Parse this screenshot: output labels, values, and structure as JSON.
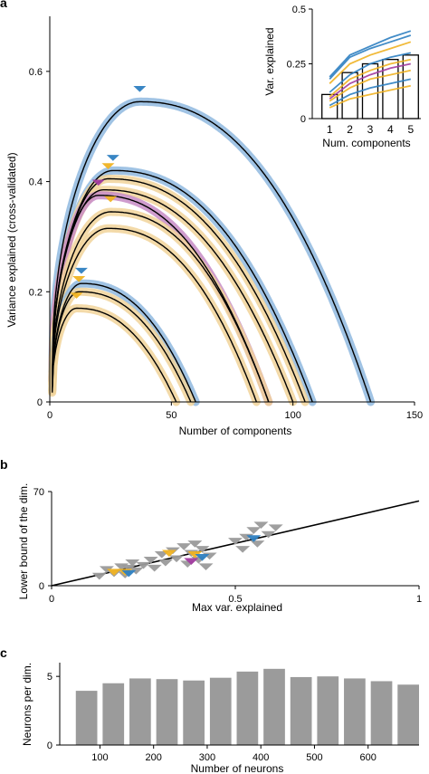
{
  "colors": {
    "blue_light": "#8fb9df",
    "blue_dark": "#2e7fc1",
    "orange_light": "#f1d39a",
    "orange_dark": "#f0b323",
    "purple": "#a23ca0",
    "bar_gray": "#9b9b9b",
    "tri_gray": "#9a9a9a",
    "line": "#000000"
  },
  "chart_data": [
    {
      "id": "a",
      "panel_label": "a",
      "type": "line",
      "xlabel": "Number of components",
      "ylabel": "Variance explained (cross-validated)",
      "xlim": [
        0,
        150
      ],
      "ylim": [
        0,
        0.7
      ],
      "xticks": [
        0,
        50,
        100,
        150
      ],
      "yticks": [
        0,
        0.2,
        0.4,
        0.6
      ],
      "series": [
        {
          "color": "blue",
          "peak_x": 37,
          "peak_y": 0.545,
          "end_x": 132,
          "marker": "blue"
        },
        {
          "color": "blue",
          "peak_x": 26,
          "peak_y": 0.42,
          "end_x": 108,
          "marker": "blue"
        },
        {
          "color": "orange",
          "peak_x": 24,
          "peak_y": 0.405,
          "end_x": 105,
          "marker": "orange"
        },
        {
          "color": "orange",
          "peak_x": 22,
          "peak_y": 0.385,
          "end_x": 100
        },
        {
          "color": "purple",
          "peak_x": 20,
          "peak_y": 0.375,
          "end_x": 90,
          "marker": "purple"
        },
        {
          "color": "orange",
          "peak_x": 25,
          "peak_y": 0.345,
          "end_x": 90,
          "marker": "orange"
        },
        {
          "color": "orange",
          "peak_x": 24,
          "peak_y": 0.315,
          "end_x": 85
        },
        {
          "color": "blue",
          "peak_x": 13,
          "peak_y": 0.215,
          "end_x": 60,
          "marker": "blue"
        },
        {
          "color": "orange",
          "peak_x": 12,
          "peak_y": 0.2,
          "end_x": 58,
          "marker": "orange"
        },
        {
          "color": "orange",
          "peak_x": 11,
          "peak_y": 0.17,
          "end_x": 52,
          "marker": "orange"
        }
      ],
      "inset": {
        "type": "bar",
        "xlabel": "Num. components",
        "ylabel": "Var. explained",
        "categories": [
          "1",
          "2",
          "3",
          "4",
          "5"
        ],
        "values": [
          0.11,
          0.21,
          0.25,
          0.27,
          0.29
        ],
        "ylim": [
          0,
          0.5
        ],
        "yticks": [
          "0",
          "0.25",
          "0.5"
        ],
        "lines": [
          {
            "color": "blue",
            "values": [
              0.19,
              0.29,
              0.33,
              0.37,
              0.4
            ]
          },
          {
            "color": "blue",
            "values": [
              0.18,
              0.28,
              0.32,
              0.35,
              0.38
            ]
          },
          {
            "color": "orange",
            "values": [
              0.16,
              0.25,
              0.29,
              0.32,
              0.35
            ]
          },
          {
            "color": "blue",
            "values": [
              0.12,
              0.2,
              0.25,
              0.28,
              0.3
            ]
          },
          {
            "color": "orange",
            "values": [
              0.1,
              0.18,
              0.22,
              0.25,
              0.27
            ]
          },
          {
            "color": "purple",
            "values": [
              0.09,
              0.16,
              0.2,
              0.23,
              0.25
            ]
          },
          {
            "color": "orange",
            "values": [
              0.08,
              0.14,
              0.18,
              0.2,
              0.22
            ]
          },
          {
            "color": "blue",
            "values": [
              0.06,
              0.11,
              0.14,
              0.16,
              0.18
            ]
          },
          {
            "color": "orange",
            "values": [
              0.05,
              0.09,
              0.11,
              0.13,
              0.15
            ]
          }
        ]
      }
    },
    {
      "id": "b",
      "panel_label": "b",
      "type": "scatter",
      "xlabel": "Max var. explained",
      "ylabel": "Lower bound of the dim.",
      "xlim": [
        0,
        1
      ],
      "ylim": [
        0,
        70
      ],
      "xticks": [
        "0",
        "0.5",
        "1"
      ],
      "yticks": [
        "0",
        "70"
      ],
      "fit_line": {
        "x": [
          0,
          1
        ],
        "y": [
          0,
          63
        ]
      },
      "points": [
        {
          "x": 0.13,
          "y": 7,
          "c": "gray"
        },
        {
          "x": 0.15,
          "y": 12,
          "c": "gray"
        },
        {
          "x": 0.17,
          "y": 9,
          "c": "gray"
        },
        {
          "x": 0.19,
          "y": 14,
          "c": "gray"
        },
        {
          "x": 0.2,
          "y": 8,
          "c": "gray"
        },
        {
          "x": 0.21,
          "y": 13,
          "c": "gray"
        },
        {
          "x": 0.22,
          "y": 17,
          "c": "gray"
        },
        {
          "x": 0.23,
          "y": 11,
          "c": "gray"
        },
        {
          "x": 0.25,
          "y": 15,
          "c": "gray"
        },
        {
          "x": 0.27,
          "y": 19,
          "c": "gray"
        },
        {
          "x": 0.28,
          "y": 13,
          "c": "gray"
        },
        {
          "x": 0.3,
          "y": 23,
          "c": "gray"
        },
        {
          "x": 0.31,
          "y": 17,
          "c": "gray"
        },
        {
          "x": 0.33,
          "y": 26,
          "c": "gray"
        },
        {
          "x": 0.34,
          "y": 20,
          "c": "gray"
        },
        {
          "x": 0.36,
          "y": 29,
          "c": "gray"
        },
        {
          "x": 0.37,
          "y": 16,
          "c": "gray"
        },
        {
          "x": 0.38,
          "y": 24,
          "c": "gray"
        },
        {
          "x": 0.39,
          "y": 31,
          "c": "gray"
        },
        {
          "x": 0.4,
          "y": 19,
          "c": "gray"
        },
        {
          "x": 0.41,
          "y": 27,
          "c": "gray"
        },
        {
          "x": 0.42,
          "y": 14,
          "c": "gray"
        },
        {
          "x": 0.43,
          "y": 22,
          "c": "gray"
        },
        {
          "x": 0.5,
          "y": 33,
          "c": "gray"
        },
        {
          "x": 0.52,
          "y": 27,
          "c": "gray"
        },
        {
          "x": 0.53,
          "y": 36,
          "c": "gray"
        },
        {
          "x": 0.55,
          "y": 41,
          "c": "gray"
        },
        {
          "x": 0.56,
          "y": 31,
          "c": "gray"
        },
        {
          "x": 0.57,
          "y": 45,
          "c": "gray"
        },
        {
          "x": 0.59,
          "y": 38,
          "c": "gray"
        },
        {
          "x": 0.61,
          "y": 43,
          "c": "gray"
        },
        {
          "x": 0.17,
          "y": 10,
          "c": "orange"
        },
        {
          "x": 0.2,
          "y": 10,
          "c": "orange"
        },
        {
          "x": 0.32,
          "y": 24,
          "c": "orange"
        },
        {
          "x": 0.39,
          "y": 23,
          "c": "orange"
        },
        {
          "x": 0.38,
          "y": 18,
          "c": "purple"
        },
        {
          "x": 0.21,
          "y": 9,
          "c": "blue"
        },
        {
          "x": 0.41,
          "y": 21,
          "c": "blue"
        },
        {
          "x": 0.55,
          "y": 35,
          "c": "blue"
        }
      ]
    },
    {
      "id": "c",
      "panel_label": "c",
      "type": "bar",
      "xlabel": "Number of neurons",
      "ylabel": "Neurons per dim.",
      "xlim": [
        25,
        695
      ],
      "ylim": [
        0,
        6
      ],
      "xticks": [
        100,
        200,
        300,
        400,
        500,
        600
      ],
      "yticks": [
        0,
        5
      ],
      "x": [
        75,
        125,
        175,
        225,
        275,
        325,
        375,
        425,
        475,
        525,
        575,
        625,
        675
      ],
      "values": [
        3.95,
        4.5,
        4.85,
        4.8,
        4.7,
        4.9,
        5.35,
        5.55,
        4.95,
        5.0,
        4.85,
        4.65,
        4.4
      ]
    }
  ]
}
